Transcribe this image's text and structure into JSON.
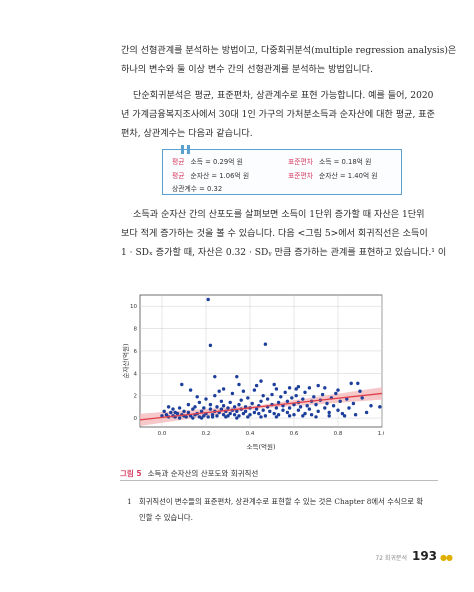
{
  "body": {
    "para1": [
      "간의 선형관계를 분석하는 방법이고, 다중회귀분석(multiple regression analysis)은",
      "하나의 변수와 둘 이상 변수 간의 선형관계를 분석하는 방법입니다."
    ],
    "para2": [
      "단순회귀분석은 평균, 표준편차, 상관계수로 표현 가능합니다. 예를 들어, 2020",
      "년 가계금융복지조사에서 30대 1인 가구의 가처분소득과 순자산에 대한 평균, 표준",
      "편차, 상관계수는 다음과 같습니다."
    ],
    "para3": [
      "소득과 순자산 간의 산포도를 살펴보면 소득이 1단위 증가할 때 자산은 1단위",
      "보다 적게 증가하는 것을 볼 수 있습니다. 다음 <그림 5>에서 회귀직선은 소득이",
      "1 · SDₓ 증가할 때, 자산은 0.32 · SDᵧ 만큼 증가하는 관계를 표현하고 있습니다.¹ 이"
    ]
  },
  "stats_box": {
    "mean_label": "평균",
    "sd_label": "표준편차",
    "r_row": "상관계수 = 0.32",
    "rows": [
      {
        "mean": "소득 = 0.29억 원",
        "sd": "소득 = 0.18억 원"
      },
      {
        "mean": "순자산 = 1.06억 원",
        "sd": "순자산 = 1.40억 원"
      }
    ],
    "accent_color": "#d83d62",
    "border_color": "#5aa0cf"
  },
  "chart_data": {
    "type": "scatter",
    "xlabel": "소득(억원)",
    "ylabel": "순자산(억원)",
    "xlim": [
      -0.1,
      1.0
    ],
    "ylim": [
      -0.8,
      11
    ],
    "xticks": [
      "0.0",
      "0.2",
      "0.4",
      "0.6",
      "0.8",
      "1.0"
    ],
    "yticks": [
      "0",
      "2",
      "4",
      "6",
      "8",
      "10"
    ],
    "grid": true,
    "point_color": "#1d3f9c",
    "line_color": "#e0404a",
    "band_color": "#f4b6b8",
    "regression": {
      "x": [
        -0.1,
        1.0
      ],
      "y": [
        -0.16,
        2.2
      ]
    },
    "points": [
      [
        0.21,
        10.6
      ],
      [
        0.22,
        6.5
      ],
      [
        0.47,
        6.6
      ],
      [
        0.24,
        3.7
      ],
      [
        0.34,
        3.7
      ],
      [
        0.26,
        2.4
      ],
      [
        0.51,
        3.0
      ],
      [
        0.58,
        2.7
      ],
      [
        0.62,
        2.8
      ],
      [
        0.71,
        2.9
      ],
      [
        0.86,
        3.1
      ],
      [
        0.89,
        3.1
      ],
      [
        0.9,
        2.4
      ],
      [
        0.99,
        1.0
      ],
      [
        0.09,
        3.0
      ],
      [
        0.13,
        2.5
      ],
      [
        0.02,
        0.3
      ],
      [
        0.03,
        0.1
      ],
      [
        0.04,
        0.5
      ],
      [
        0.05,
        0.2
      ],
      [
        0.05,
        0.8
      ],
      [
        0.06,
        0.1
      ],
      [
        0.07,
        0.4
      ],
      [
        0.08,
        0.0
      ],
      [
        0.08,
        0.9
      ],
      [
        0.09,
        0.3
      ],
      [
        0.1,
        0.6
      ],
      [
        0.11,
        0.1
      ],
      [
        0.12,
        0.5
      ],
      [
        0.12,
        1.2
      ],
      [
        0.13,
        0.2
      ],
      [
        0.14,
        0.8
      ],
      [
        0.15,
        0.3
      ],
      [
        0.15,
        1.0
      ],
      [
        0.16,
        0.4
      ],
      [
        0.17,
        0.1
      ],
      [
        0.17,
        1.4
      ],
      [
        0.18,
        0.6
      ],
      [
        0.19,
        0.2
      ],
      [
        0.19,
        0.9
      ],
      [
        0.2,
        0.4
      ],
      [
        0.2,
        1.7
      ],
      [
        0.21,
        0.1
      ],
      [
        0.22,
        0.8
      ],
      [
        0.22,
        1.2
      ],
      [
        0.23,
        0.3
      ],
      [
        0.24,
        0.6
      ],
      [
        0.24,
        2.0
      ],
      [
        0.25,
        0.2
      ],
      [
        0.25,
        1.0
      ],
      [
        0.26,
        0.5
      ],
      [
        0.27,
        0.8
      ],
      [
        0.27,
        1.5
      ],
      [
        0.28,
        0.3
      ],
      [
        0.28,
        1.1
      ],
      [
        0.29,
        0.6
      ],
      [
        0.3,
        0.2
      ],
      [
        0.3,
        0.9
      ],
      [
        0.31,
        1.4
      ],
      [
        0.31,
        0.4
      ],
      [
        0.32,
        0.7
      ],
      [
        0.32,
        2.2
      ],
      [
        0.33,
        0.3
      ],
      [
        0.33,
        1.0
      ],
      [
        0.34,
        0.6
      ],
      [
        0.35,
        1.2
      ],
      [
        0.35,
        0.2
      ],
      [
        0.36,
        0.8
      ],
      [
        0.36,
        1.6
      ],
      [
        0.37,
        0.4
      ],
      [
        0.38,
        1.0
      ],
      [
        0.38,
        0.6
      ],
      [
        0.39,
        1.8
      ],
      [
        0.4,
        0.3
      ],
      [
        0.4,
        0.9
      ],
      [
        0.41,
        1.3
      ],
      [
        0.42,
        0.5
      ],
      [
        0.42,
        2.5
      ],
      [
        0.43,
        0.8
      ],
      [
        0.44,
        1.1
      ],
      [
        0.44,
        0.4
      ],
      [
        0.45,
        1.5
      ],
      [
        0.46,
        0.7
      ],
      [
        0.46,
        2.0
      ],
      [
        0.47,
        0.2
      ],
      [
        0.48,
        1.0
      ],
      [
        0.48,
        1.7
      ],
      [
        0.49,
        0.6
      ],
      [
        0.5,
        1.2
      ],
      [
        0.5,
        2.1
      ],
      [
        0.51,
        0.4
      ],
      [
        0.52,
        0.9
      ],
      [
        0.53,
        1.4
      ],
      [
        0.53,
        0.3
      ],
      [
        0.54,
        1.9
      ],
      [
        0.55,
        0.7
      ],
      [
        0.55,
        1.1
      ],
      [
        0.56,
        2.3
      ],
      [
        0.57,
        0.5
      ],
      [
        0.57,
        1.5
      ],
      [
        0.58,
        0.9
      ],
      [
        0.59,
        1.8
      ],
      [
        0.6,
        0.3
      ],
      [
        0.6,
        1.2
      ],
      [
        0.61,
        2.0
      ],
      [
        0.62,
        0.7
      ],
      [
        0.62,
        1.4
      ],
      [
        0.63,
        1.0
      ],
      [
        0.64,
        1.7
      ],
      [
        0.65,
        0.4
      ],
      [
        0.65,
        2.3
      ],
      [
        0.66,
        1.1
      ],
      [
        0.67,
        0.8
      ],
      [
        0.68,
        1.5
      ],
      [
        0.68,
        0.3
      ],
      [
        0.69,
        1.9
      ],
      [
        0.7,
        1.2
      ],
      [
        0.71,
        0.6
      ],
      [
        0.72,
        1.6
      ],
      [
        0.73,
        2.1
      ],
      [
        0.74,
        0.9
      ],
      [
        0.75,
        1.3
      ],
      [
        0.76,
        0.5
      ],
      [
        0.77,
        1.8
      ],
      [
        0.78,
        1.1
      ],
      [
        0.79,
        2.2
      ],
      [
        0.8,
        0.7
      ],
      [
        0.81,
        1.5
      ],
      [
        0.82,
        0.4
      ],
      [
        0.84,
        1.7
      ],
      [
        0.85,
        0.9
      ],
      [
        0.87,
        1.3
      ],
      [
        0.88,
        0.3
      ],
      [
        0.91,
        1.8
      ],
      [
        0.93,
        0.5
      ],
      [
        0.95,
        1.1
      ],
      [
        0.0,
        0.2
      ],
      [
        0.01,
        0.6
      ],
      [
        0.03,
        1.0
      ],
      [
        0.06,
        0.5
      ],
      [
        0.1,
        0.2
      ],
      [
        0.14,
        0.0
      ],
      [
        0.18,
        0.0
      ],
      [
        0.23,
        0.1
      ],
      [
        0.29,
        0.1
      ],
      [
        0.34,
        0.0
      ],
      [
        0.39,
        0.1
      ],
      [
        0.45,
        0.1
      ],
      [
        0.52,
        0.1
      ],
      [
        0.58,
        0.2
      ],
      [
        0.64,
        0.2
      ],
      [
        0.7,
        0.1
      ],
      [
        0.76,
        0.2
      ],
      [
        0.83,
        0.2
      ],
      [
        0.16,
        1.9
      ],
      [
        0.28,
        2.6
      ],
      [
        0.37,
        2.4
      ],
      [
        0.43,
        2.9
      ],
      [
        0.52,
        2.6
      ],
      [
        0.61,
        2.6
      ],
      [
        0.67,
        2.7
      ],
      [
        0.74,
        2.7
      ],
      [
        0.8,
        2.5
      ],
      [
        0.35,
        3.0
      ],
      [
        0.45,
        3.3
      ]
    ]
  },
  "figure": {
    "number": "그림 5",
    "caption": "소득과 순자산의 산포도와 회귀직선"
  },
  "footnote": {
    "number": "1",
    "lines": [
      "회귀직선이 변수들의 표준편차, 상관계수로 표현할 수 있는 것은 Chapter 8에서 수식으로 확",
      "인할 수 있습니다."
    ]
  },
  "footer": {
    "chapter": "72 회귀분석",
    "page": "193",
    "dots": "●●",
    "dot_color": "#e0b000"
  }
}
